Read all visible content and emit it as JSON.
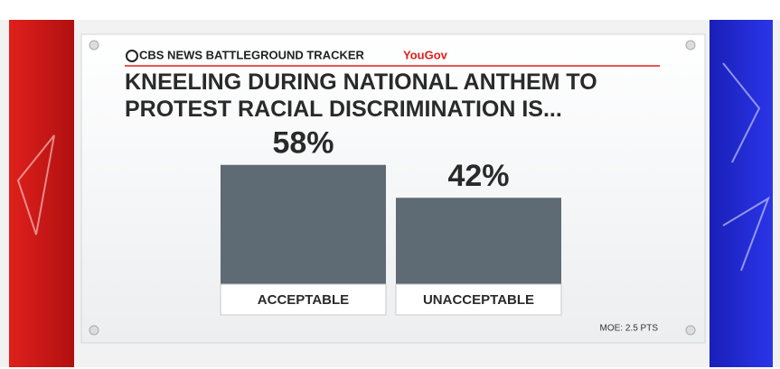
{
  "header": {
    "source": "CBS NEWS BATTLEGROUND TRACKER",
    "partner": "YouGov"
  },
  "chart_data": {
    "type": "bar",
    "title": "KNEELING DURING NATIONAL ANTHEM TO PROTEST RACIAL DISCRIMINATION IS...",
    "categories": [
      "ACCEPTABLE",
      "UNACCEPTABLE"
    ],
    "values": [
      58,
      42
    ],
    "value_labels": [
      "58%",
      "42%"
    ],
    "color": "#5f6b74",
    "note": "MOE: 2.5 PTS"
  }
}
